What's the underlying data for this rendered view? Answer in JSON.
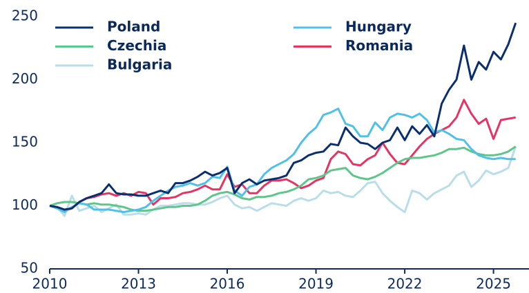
{
  "chart_data": {
    "type": "line",
    "x": [
      2010,
      2010.25,
      2010.5,
      2010.75,
      2011,
      2011.25,
      2011.5,
      2011.75,
      2012,
      2012.25,
      2012.5,
      2012.75,
      2013,
      2013.25,
      2013.5,
      2013.75,
      2014,
      2014.25,
      2014.5,
      2014.75,
      2015,
      2015.25,
      2015.5,
      2015.75,
      2016,
      2016.25,
      2016.5,
      2016.75,
      2017,
      2017.25,
      2017.5,
      2017.75,
      2018,
      2018.25,
      2018.5,
      2018.75,
      2019,
      2019.25,
      2019.5,
      2019.75,
      2020,
      2020.25,
      2020.5,
      2020.75,
      2021,
      2021.25,
      2021.5,
      2021.75,
      2022,
      2022.25,
      2022.5,
      2022.75,
      2023,
      2023.25,
      2023.5,
      2023.75,
      2024,
      2024.25,
      2024.5,
      2024.75,
      2025,
      2025.25,
      2025.5,
      2025.75
    ],
    "series": [
      {
        "name": "Poland",
        "color": "#0b2f6e",
        "values": [
          100,
          99,
          97,
          98,
          103,
          106,
          108,
          110,
          117,
          110,
          109,
          109,
          108,
          108,
          110,
          112,
          110,
          118,
          118,
          120,
          123,
          127,
          124,
          126,
          130,
          110,
          118,
          121,
          117,
          120,
          121,
          122,
          124,
          134,
          136,
          140,
          142,
          143,
          149,
          148,
          162,
          155,
          150,
          149,
          145,
          150,
          152,
          162,
          152,
          163,
          157,
          164,
          155,
          181,
          192,
          200,
          227,
          200,
          214,
          208,
          222,
          216,
          228,
          245
        ]
      },
      {
        "name": "Hungary",
        "color": "#4fc0e8",
        "values": [
          100,
          98,
          95,
          99,
          102,
          101,
          97,
          97,
          97,
          96,
          95,
          96,
          97,
          99,
          104,
          108,
          112,
          115,
          116,
          118,
          116,
          118,
          123,
          122,
          131,
          112,
          108,
          115,
          117,
          125,
          130,
          133,
          136,
          141,
          150,
          157,
          162,
          172,
          174,
          177,
          165,
          163,
          155,
          155,
          166,
          160,
          170,
          173,
          172,
          170,
          173,
          168,
          158,
          160,
          157,
          153,
          152,
          145,
          140,
          138,
          137,
          138,
          137,
          137
        ]
      },
      {
        "name": "Czechia",
        "color": "#5ec58b",
        "values": [
          100,
          102,
          103,
          103,
          102,
          101,
          102,
          101,
          101,
          100,
          99,
          97,
          96,
          96,
          97,
          98,
          99,
          99,
          100,
          100,
          101,
          104,
          108,
          110,
          111,
          109,
          106,
          105,
          107,
          107,
          108,
          110,
          111,
          113,
          116,
          121,
          122,
          124,
          128,
          129,
          130,
          124,
          122,
          121,
          123,
          126,
          130,
          134,
          137,
          138,
          138,
          139,
          140,
          142,
          145,
          145,
          146,
          143,
          141,
          140,
          140,
          141,
          143,
          147
        ]
      },
      {
        "name": "Romania",
        "color": "#e63462",
        "values": [
          100,
          98,
          96,
          98,
          103,
          106,
          107,
          109,
          110,
          108,
          110,
          108,
          111,
          110,
          101,
          106,
          106,
          107,
          110,
          111,
          113,
          116,
          113,
          113,
          125,
          115,
          117,
          110,
          110,
          116,
          120,
          120,
          121,
          118,
          114,
          116,
          120,
          122,
          137,
          143,
          141,
          133,
          132,
          137,
          140,
          150,
          141,
          134,
          133,
          140,
          147,
          153,
          157,
          160,
          163,
          170,
          184,
          173,
          165,
          169,
          153,
          168,
          169,
          170
        ]
      },
      {
        "name": "Bulgaria",
        "color": "#b9dde9",
        "values": [
          100,
          99,
          92,
          108,
          96,
          98,
          100,
          95,
          98,
          101,
          93,
          93,
          94,
          93,
          97,
          100,
          100,
          101,
          102,
          102,
          101,
          101,
          103,
          106,
          108,
          101,
          98,
          99,
          96,
          99,
          102,
          101,
          100,
          104,
          106,
          104,
          106,
          112,
          110,
          111,
          108,
          107,
          112,
          118,
          119,
          110,
          104,
          99,
          95,
          112,
          110,
          105,
          110,
          113,
          116,
          124,
          127,
          115,
          120,
          128,
          125,
          127,
          130,
          147
        ]
      }
    ],
    "xlim": [
      2010,
      2026.2
    ],
    "xticks": [
      2010,
      2013,
      2016,
      2019,
      2022,
      2025
    ],
    "ylim": [
      50,
      250
    ],
    "yticks": [
      50,
      100,
      150,
      200,
      250
    ]
  }
}
